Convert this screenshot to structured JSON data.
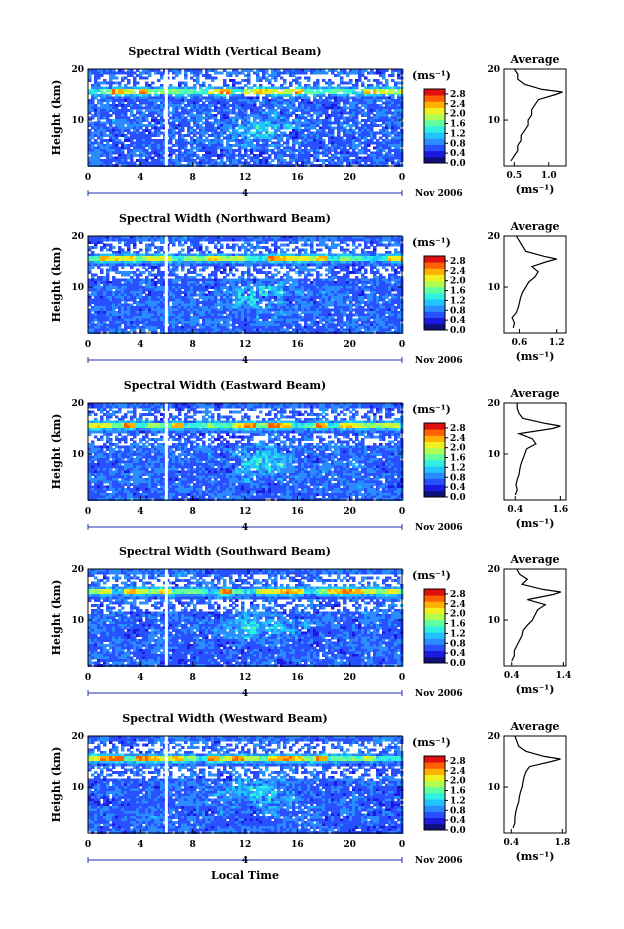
{
  "figure": {
    "xlabel": "Local Time",
    "date_label": "Nov 2006",
    "day_label": "4",
    "ylabel": "Height (km)",
    "avg_title": "Average",
    "unit_label": "(ms⁻¹)",
    "colorbar_ticks": [
      "2.8",
      "2.4",
      "2.0",
      "1.6",
      "1.2",
      "0.8",
      "0.4",
      "0.0"
    ],
    "colormap": [
      "#10107a",
      "#1a1ae0",
      "#2850ff",
      "#2a8cff",
      "#22c4ff",
      "#30f0e0",
      "#60ffa0",
      "#b0ff50",
      "#f0f020",
      "#ffb000",
      "#ff6000",
      "#e01010"
    ]
  },
  "chart_data": [
    {
      "type": "heatmap",
      "title": "Spectral Width (Vertical Beam)",
      "x_ticks": [
        "0",
        "4",
        "8",
        "12",
        "16",
        "20",
        "0"
      ],
      "xlim": [
        0,
        24
      ],
      "y_ticks": [
        "20",
        "10"
      ],
      "ylim": [
        1,
        20
      ],
      "colorbar_range": [
        0.0,
        3.0
      ],
      "avg_profile": {
        "title": "Average",
        "xlabel": "(ms⁻¹)",
        "x_ticks": [
          "0.5",
          "1.0"
        ],
        "xlim": [
          0.35,
          1.25
        ],
        "y_ticks": [
          "20",
          "10"
        ],
        "height_km": [
          2,
          3,
          4,
          5,
          6,
          7,
          8,
          9,
          10,
          11,
          12,
          13,
          14,
          15,
          15.5,
          16,
          17,
          18,
          19,
          20
        ],
        "width_ms": [
          0.45,
          0.5,
          0.55,
          0.55,
          0.6,
          0.6,
          0.65,
          0.7,
          0.7,
          0.75,
          0.75,
          0.8,
          0.85,
          1.1,
          1.2,
          0.9,
          0.65,
          0.55,
          0.55,
          0.5
        ]
      }
    },
    {
      "type": "heatmap",
      "title": "Spectral Width (Northward Beam)",
      "x_ticks": [
        "0",
        "4",
        "8",
        "12",
        "16",
        "20",
        "0"
      ],
      "xlim": [
        0,
        24
      ],
      "y_ticks": [
        "20",
        "10"
      ],
      "ylim": [
        1,
        20
      ],
      "colorbar_range": [
        0.0,
        3.0
      ],
      "avg_profile": {
        "title": "Average",
        "xlabel": "(ms⁻¹)",
        "x_ticks": [
          "0.6",
          "1.2"
        ],
        "xlim": [
          0.35,
          1.35
        ],
        "y_ticks": [
          "20",
          "10"
        ],
        "height_km": [
          2,
          3,
          4,
          5,
          6,
          7,
          8,
          9,
          10,
          11,
          12,
          13,
          14,
          15,
          15.5,
          16,
          17,
          18,
          19,
          20
        ],
        "width_ms": [
          0.5,
          0.52,
          0.48,
          0.55,
          0.58,
          0.6,
          0.62,
          0.65,
          0.7,
          0.75,
          0.85,
          0.9,
          0.8,
          1.05,
          1.2,
          1.0,
          0.7,
          0.65,
          0.6,
          0.55
        ]
      }
    },
    {
      "type": "heatmap",
      "title": "Spectral Width (Eastward Beam)",
      "x_ticks": [
        "0",
        "4",
        "8",
        "12",
        "16",
        "20",
        "0"
      ],
      "xlim": [
        0,
        24
      ],
      "y_ticks": [
        "20",
        "10"
      ],
      "ylim": [
        1,
        20
      ],
      "colorbar_range": [
        0.0,
        3.0
      ],
      "avg_profile": {
        "title": "Average",
        "xlabel": "(ms⁻¹)",
        "x_ticks": [
          "0.4",
          "1.6"
        ],
        "xlim": [
          0.1,
          1.75
        ],
        "y_ticks": [
          "20",
          "10"
        ],
        "height_km": [
          2,
          3,
          4,
          5,
          6,
          7,
          8,
          9,
          10,
          11,
          12,
          13,
          14,
          15,
          15.5,
          16,
          17,
          18,
          19,
          20
        ],
        "width_ms": [
          0.4,
          0.45,
          0.42,
          0.45,
          0.5,
          0.52,
          0.55,
          0.6,
          0.65,
          0.7,
          0.95,
          0.85,
          0.5,
          1.4,
          1.6,
          1.2,
          0.6,
          0.5,
          0.45,
          0.45
        ]
      }
    },
    {
      "type": "heatmap",
      "title": "Spectral Width (Southward Beam)",
      "x_ticks": [
        "0",
        "4",
        "8",
        "12",
        "16",
        "20",
        "0"
      ],
      "xlim": [
        0,
        24
      ],
      "y_ticks": [
        "20",
        "10"
      ],
      "ylim": [
        1,
        20
      ],
      "colorbar_range": [
        0.0,
        3.0
      ],
      "avg_profile": {
        "title": "Average",
        "xlabel": "(ms⁻¹)",
        "x_ticks": [
          "0.4",
          "1.4"
        ],
        "xlim": [
          0.25,
          1.45
        ],
        "y_ticks": [
          "20",
          "10"
        ],
        "height_km": [
          2,
          3,
          4,
          5,
          6,
          7,
          8,
          9,
          10,
          11,
          12,
          13,
          14,
          15,
          15.5,
          16,
          17,
          18,
          19,
          20
        ],
        "width_ms": [
          0.4,
          0.45,
          0.45,
          0.5,
          0.55,
          0.6,
          0.62,
          0.7,
          0.8,
          0.85,
          0.9,
          1.05,
          0.7,
          1.2,
          1.35,
          1.0,
          0.6,
          0.7,
          0.55,
          0.5
        ]
      }
    },
    {
      "type": "heatmap",
      "title": "Spectral Width (Westward Beam)",
      "x_ticks": [
        "0",
        "4",
        "8",
        "12",
        "16",
        "20",
        "0"
      ],
      "xlim": [
        0,
        24
      ],
      "y_ticks": [
        "20",
        "10"
      ],
      "ylim": [
        1,
        20
      ],
      "colorbar_range": [
        0.0,
        3.0
      ],
      "avg_profile": {
        "title": "Average",
        "xlabel": "(ms⁻¹)",
        "x_ticks": [
          "0.4",
          "1.8"
        ],
        "xlim": [
          0.2,
          1.9
        ],
        "y_ticks": [
          "20",
          "10"
        ],
        "height_km": [
          2,
          3,
          4,
          5,
          6,
          7,
          8,
          9,
          10,
          11,
          12,
          13,
          14,
          15,
          15.5,
          16,
          17,
          18,
          19,
          20
        ],
        "width_ms": [
          0.45,
          0.5,
          0.5,
          0.52,
          0.55,
          0.6,
          0.62,
          0.65,
          0.7,
          0.72,
          0.75,
          0.8,
          0.9,
          1.5,
          1.75,
          1.3,
          0.8,
          0.6,
          0.55,
          0.5
        ]
      }
    }
  ]
}
